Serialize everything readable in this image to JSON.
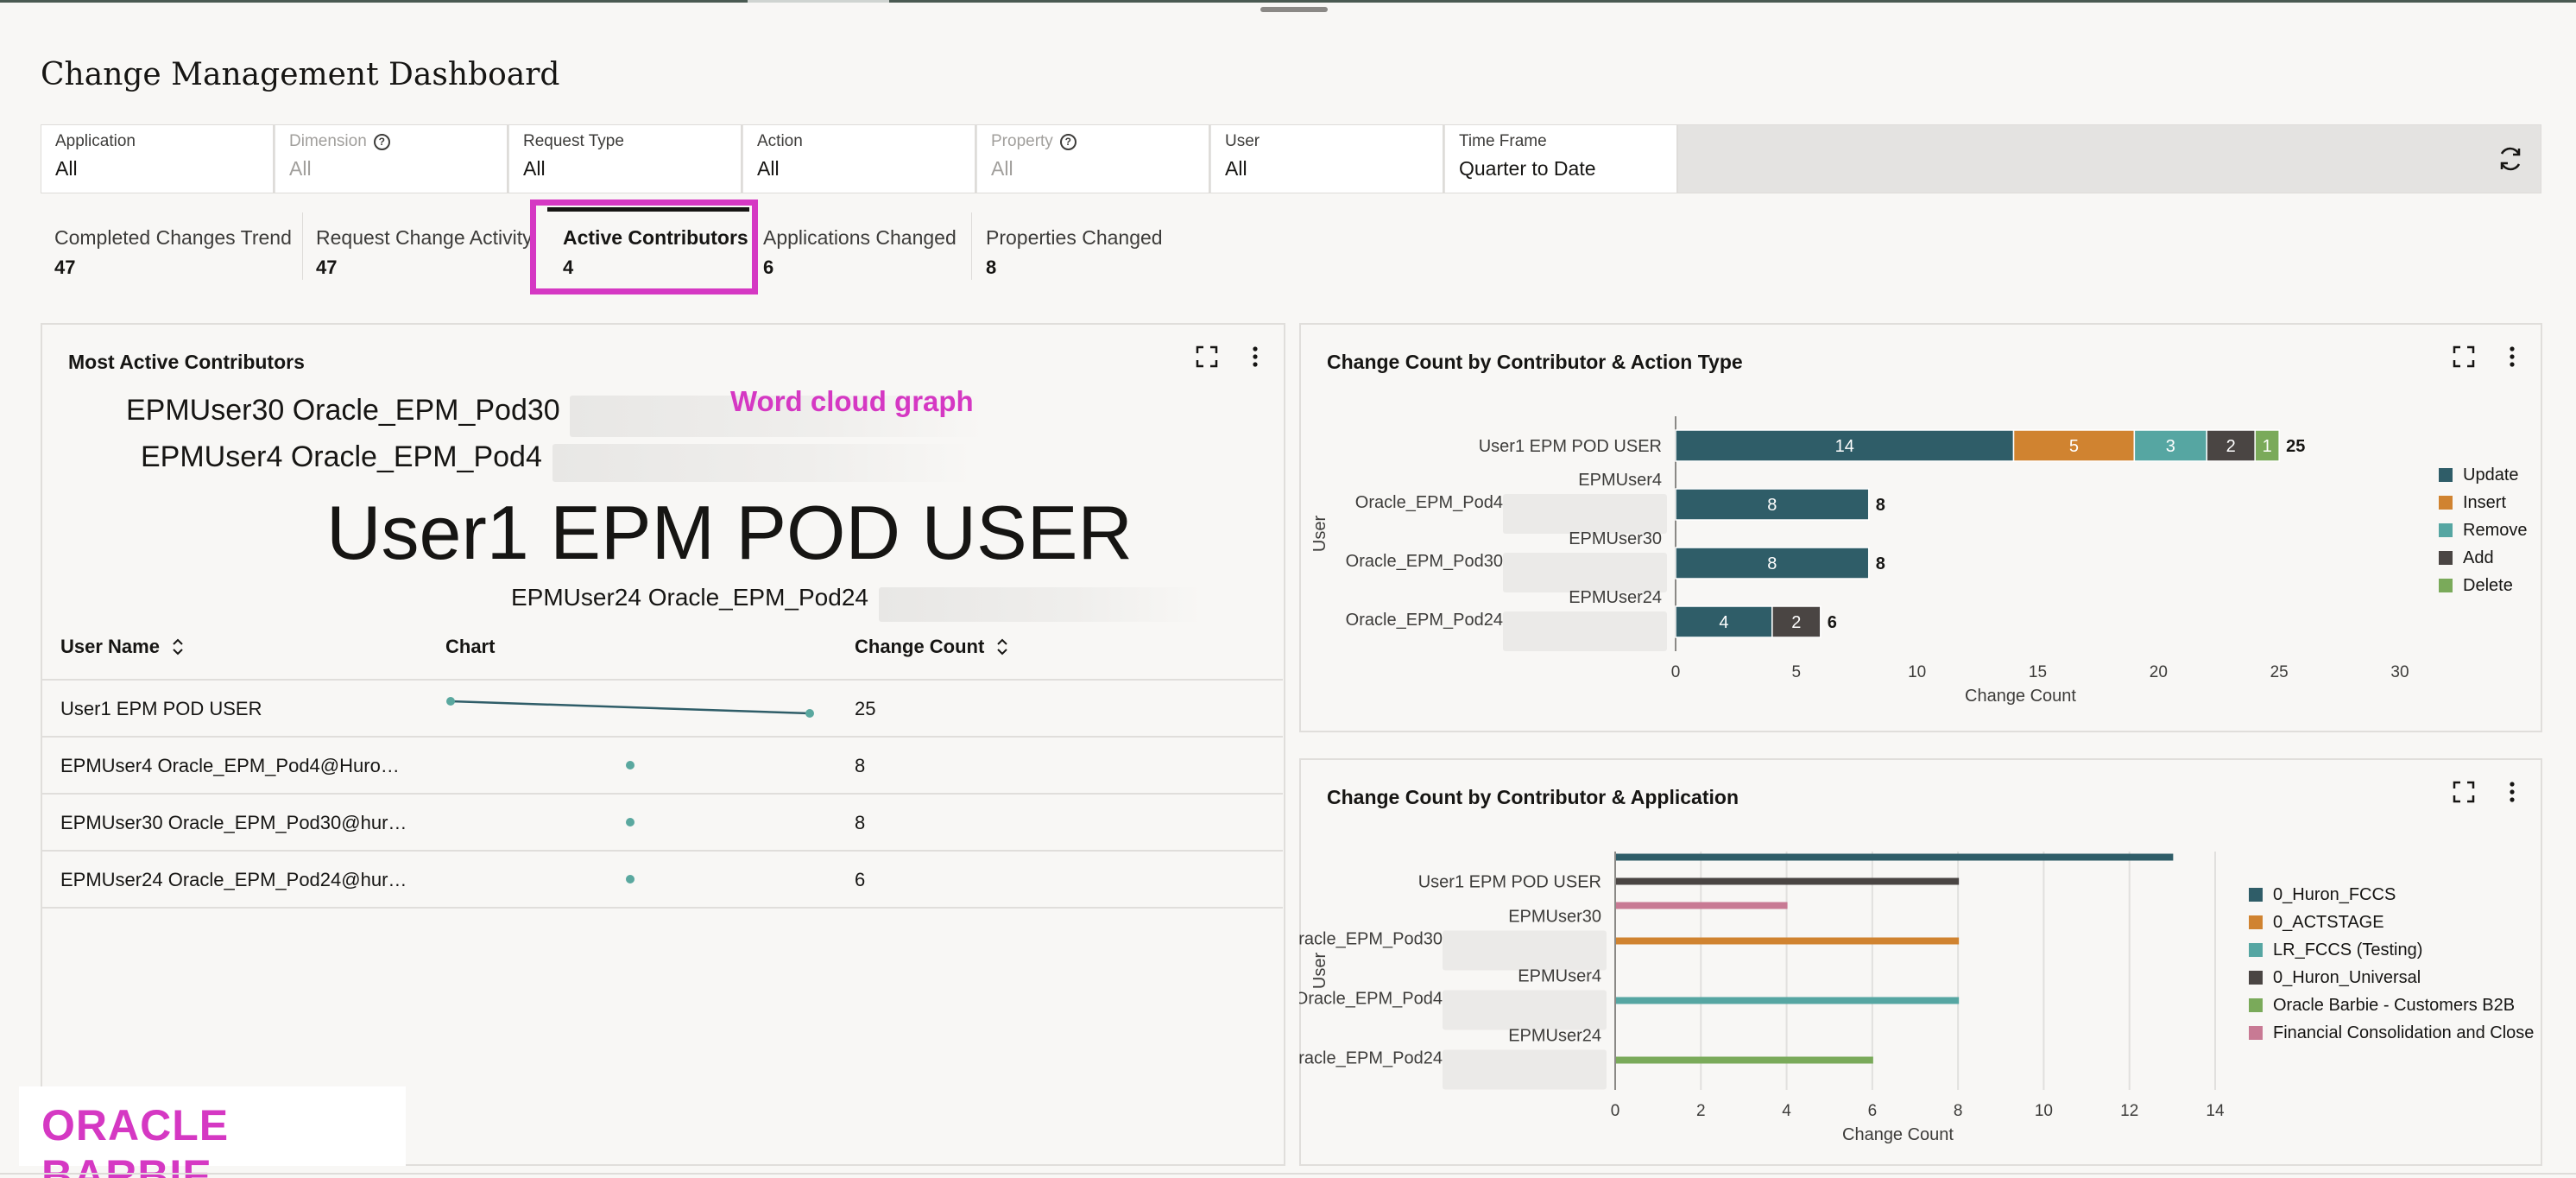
{
  "page_title": "Change Management Dashboard",
  "filters": [
    {
      "label": "Application",
      "value": "All",
      "disabled": false,
      "help": false
    },
    {
      "label": "Dimension",
      "value": "All",
      "disabled": true,
      "help": true
    },
    {
      "label": "Request Type",
      "value": "All",
      "disabled": false,
      "help": false
    },
    {
      "label": "Action",
      "value": "All",
      "disabled": false,
      "help": false
    },
    {
      "label": "Property",
      "value": "All",
      "disabled": true,
      "help": true
    },
    {
      "label": "User",
      "value": "All",
      "disabled": false,
      "help": false
    },
    {
      "label": "Time Frame",
      "value": "Quarter to Date",
      "disabled": false,
      "help": false
    }
  ],
  "icons": {
    "refresh": "refresh-icon",
    "help": "help-icon",
    "expand": "expand-icon",
    "more": "kebab-icon",
    "sort": "sort-icon"
  },
  "tabs": [
    {
      "label": "Completed Changes Trend",
      "value": "47"
    },
    {
      "label": "Request Change Activity",
      "value": "47"
    },
    {
      "label": "Active Contributors",
      "value": "4",
      "active": true
    },
    {
      "label": "Applications Changed",
      "value": "6"
    },
    {
      "label": "Properties Changed",
      "value": "8"
    }
  ],
  "most_active": {
    "title": "Most Active Contributors",
    "annotation": "Word cloud graph",
    "word_cloud": [
      {
        "text": "EPMUser30 Oracle_EPM_Pod30",
        "size": 34
      },
      {
        "text": "EPMUser4 Oracle_EPM_Pod4",
        "size": 34
      },
      {
        "text": "User1 EPM POD USER",
        "size": 88
      },
      {
        "text": "EPMUser24 Oracle_EPM_Pod24",
        "size": 28
      }
    ],
    "columns": {
      "user": "User Name",
      "chart": "Chart",
      "count": "Change Count"
    },
    "rows": [
      {
        "user": "User1 EPM POD USER",
        "count": "25"
      },
      {
        "user": "EPMUser4 Oracle_EPM_Pod4@Huro…",
        "count": "8"
      },
      {
        "user": "EPMUser30 Oracle_EPM_Pod30@hur…",
        "count": "8"
      },
      {
        "user": "EPMUser24 Oracle_EPM_Pod24@hur…",
        "count": "6"
      }
    ]
  },
  "chart_action": {
    "title": "Change Count by Contributor & Action Type",
    "colors": {
      "Update": "#2f5d68",
      "Insert": "#d08330",
      "Remove": "#56a6a2",
      "Add": "#4a4543",
      "Delete": "#7aaa5a"
    }
  },
  "chart_app": {
    "title": "Change Count by Contributor & Application",
    "colors": {
      "0_Huron_FCCS": "#2f5d68",
      "0_ACTSTAGE": "#d08330",
      "LR_FCCS (Testing)": "#56a6a2",
      "0_Huron_Universal": "#4a4543",
      "Oracle Barbie - Customers B2B": "#7aaa5a",
      "Financial Consolidation and Close": "#c87a94"
    }
  },
  "chart_data": [
    {
      "type": "bar",
      "orientation": "horizontal",
      "stacked": true,
      "title": "Change Count by Contributor & Action Type",
      "categories": [
        [
          "User1 EPM POD USER"
        ],
        [
          "EPMUser4",
          "Oracle_EPM_Pod4"
        ],
        [
          "EPMUser30",
          "Oracle_EPM_Pod30"
        ],
        [
          "EPMUser24",
          "Oracle_EPM_Pod24"
        ]
      ],
      "series": [
        {
          "name": "Update",
          "values": [
            14,
            8,
            8,
            4
          ]
        },
        {
          "name": "Insert",
          "values": [
            5,
            0,
            0,
            0
          ]
        },
        {
          "name": "Remove",
          "values": [
            3,
            0,
            0,
            0
          ]
        },
        {
          "name": "Add",
          "values": [
            2,
            0,
            0,
            2
          ]
        },
        {
          "name": "Delete",
          "values": [
            1,
            0,
            0,
            0
          ]
        }
      ],
      "totals": [
        25,
        8,
        8,
        6
      ],
      "xlabel": "Change Count",
      "ylabel": "User",
      "xlim": [
        0,
        30
      ],
      "xticks": [
        0,
        5,
        10,
        15,
        20,
        25,
        30
      ],
      "legend": "right"
    },
    {
      "type": "bar",
      "orientation": "horizontal",
      "stacked": false,
      "title": "Change Count by Contributor & Application",
      "categories": [
        [
          "User1 EPM POD USER"
        ],
        [
          "EPMUser30",
          "Oracle_EPM_Pod30"
        ],
        [
          "EPMUser4",
          "Oracle_EPM_Pod4"
        ],
        [
          "EPMUser24",
          "Oracle_EPM_Pod24"
        ]
      ],
      "series": [
        {
          "name": "0_Huron_FCCS",
          "values": [
            13,
            0,
            0,
            0
          ]
        },
        {
          "name": "0_ACTSTAGE",
          "values": [
            0,
            8,
            0,
            0
          ]
        },
        {
          "name": "LR_FCCS (Testing)",
          "values": [
            0,
            0,
            8,
            0
          ]
        },
        {
          "name": "0_Huron_Universal",
          "values": [
            8,
            0,
            0,
            0
          ]
        },
        {
          "name": "Oracle Barbie - Customers B2B",
          "values": [
            0,
            0,
            0,
            6
          ]
        },
        {
          "name": "Financial Consolidation and Close",
          "values": [
            4,
            0,
            0,
            0
          ]
        }
      ],
      "xlabel": "Change Count",
      "ylabel": "User",
      "xlim": [
        0,
        14
      ],
      "xticks": [
        0,
        2,
        4,
        6,
        8,
        10,
        12,
        14
      ],
      "legend": "right"
    }
  ],
  "sparkline": {
    "values": [
      25,
      8,
      8,
      6
    ]
  },
  "brand": "ORACLE BARBIE"
}
